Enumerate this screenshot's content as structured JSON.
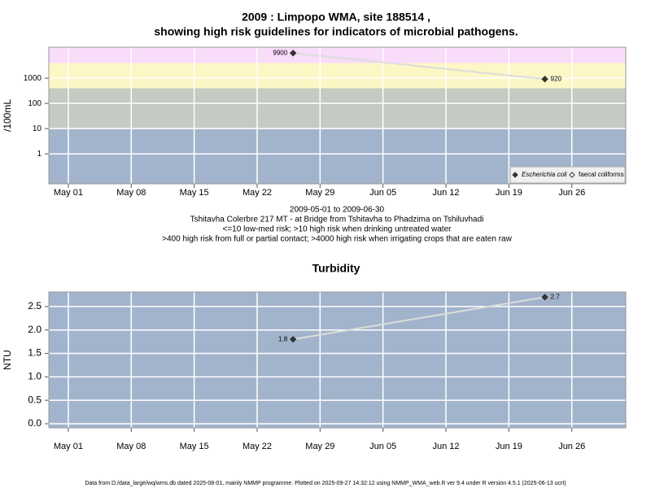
{
  "chart_data": [
    {
      "type": "line",
      "title": [
        "2009 : Limpopo WMA, site 188514 ,",
        "showing high risk guidelines for indicators of microbial pathogens."
      ],
      "ylabel": "/100mL",
      "log_y": true,
      "x": [
        "2009-05-26",
        "2009-06-23"
      ],
      "series": [
        {
          "name": "Escherichia coli",
          "color": "#333333",
          "filled": true,
          "values": [
            9900,
            920
          ],
          "value_labels": [
            "9900",
            "920"
          ]
        },
        {
          "name": "faecal coliforms",
          "color": "#333333",
          "filled": false,
          "values": [
            null,
            null
          ]
        }
      ],
      "line_color": "#dddddd",
      "xlim": [
        "2009-04-28T20:00",
        "2009-07-02"
      ],
      "xticks": [
        {
          "value": "2009-05-01",
          "label": "May 01"
        },
        {
          "value": "2009-05-08",
          "label": "May 08"
        },
        {
          "value": "2009-05-15",
          "label": "May 15"
        },
        {
          "value": "2009-05-22",
          "label": "May 22"
        },
        {
          "value": "2009-05-29",
          "label": "May 29"
        },
        {
          "value": "2009-06-05",
          "label": "Jun 05"
        },
        {
          "value": "2009-06-12",
          "label": "Jun 12"
        },
        {
          "value": "2009-06-19",
          "label": "Jun 19"
        },
        {
          "value": "2009-06-26",
          "label": "Jun 26"
        }
      ],
      "ylim": [
        0.065,
        17000
      ],
      "yticks": [
        1,
        10,
        100,
        1000
      ],
      "bands": {
        "breaks": [
          10,
          400,
          4000
        ],
        "colors": [
          "#a2b4cc",
          "#c4cbc2",
          "#fdf7c6",
          "#f9dcf9"
        ]
      },
      "grid": true,
      "legend": "bottom-right",
      "notes": [
        "2009-05-01 to 2009-06-30",
        "Tshitavha Colerbre 217 MT - at Bridge from Tshitavha to Phadzima on Tshiluvhadi",
        "<=10 low-med risk; >10 high risk when drinking untreated water",
        ">400 high risk from full or partial contact; >4000 high risk when irrigating crops that are eaten raw"
      ]
    },
    {
      "type": "line",
      "title": [
        "Turbidity"
      ],
      "ylabel": "NTU",
      "log_y": false,
      "x": [
        "2009-05-26",
        "2009-06-23"
      ],
      "series": [
        {
          "name": "Turbidity",
          "color": "#333333",
          "filled": true,
          "values": [
            1.8,
            2.7
          ],
          "value_labels": [
            "1.8",
            "2.7"
          ]
        }
      ],
      "line_color": "#dddddd",
      "background": "#a2b4cc",
      "xlim": [
        "2009-04-28T20:00",
        "2009-07-02"
      ],
      "xticks": [
        {
          "value": "2009-05-01",
          "label": "May 01"
        },
        {
          "value": "2009-05-08",
          "label": "May 08"
        },
        {
          "value": "2009-05-15",
          "label": "May 15"
        },
        {
          "value": "2009-05-22",
          "label": "May 22"
        },
        {
          "value": "2009-05-29",
          "label": "May 29"
        },
        {
          "value": "2009-06-05",
          "label": "Jun 05"
        },
        {
          "value": "2009-06-12",
          "label": "Jun 12"
        },
        {
          "value": "2009-06-19",
          "label": "Jun 19"
        },
        {
          "value": "2009-06-26",
          "label": "Jun 26"
        }
      ],
      "ylim": [
        -0.087,
        2.81
      ],
      "yticks": [
        {
          "value": 0,
          "label": "0.0"
        },
        0.5,
        {
          "value": 1,
          "label": "1.0"
        },
        1.5,
        {
          "value": 2,
          "label": "2.0"
        },
        2.5
      ],
      "grid": true
    }
  ],
  "footer": "Data from D:/data_large/wq/wms.db dated 2025-08-01, mainly NMMP programme. Plotted on 2025-09-27 14:32:12 using NMMP_WMA_web.R ver 9.4 under R version 4.5.1 (2025-06-13 ucrt)"
}
